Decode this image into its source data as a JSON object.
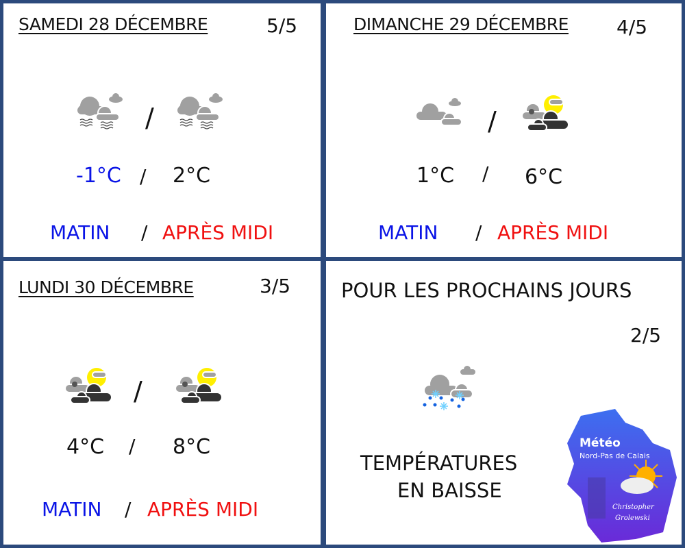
{
  "days": [
    {
      "title": "SAMEDI 28 DÉCEMBRE",
      "score": "5/5",
      "icon_morning": "fog-cloud-icon",
      "icon_afternoon": "fog-cloud-icon",
      "temp_morning": "-1°C",
      "temp_afternoon": "2°C",
      "label_morning": "MATIN",
      "label_afternoon": "APRÈS MIDI",
      "sep": "/"
    },
    {
      "title": "DIMANCHE 29 DÉCEMBRE",
      "score": "4/5",
      "icon_morning": "cloudy-icon",
      "icon_afternoon": "sun-dark-clouds-icon",
      "temp_morning": "1°C",
      "temp_afternoon": "6°C",
      "label_morning": "MATIN",
      "label_afternoon": "APRÈS MIDI",
      "sep": "/"
    },
    {
      "title": "LUNDI 30 DÉCEMBRE",
      "score": "3/5",
      "icon_morning": "sun-dark-clouds-icon",
      "icon_afternoon": "sun-dark-clouds-icon",
      "temp_morning": "4°C",
      "temp_afternoon": "8°C",
      "label_morning": "MATIN",
      "label_afternoon": "APRÈS MIDI",
      "sep": "/"
    }
  ],
  "outlook": {
    "title": "POUR LES PROCHAINS JOURS",
    "score": "2/5",
    "icon": "snow-rain-icon",
    "line1": "TEMPÉRATURES",
    "line2": "EN BAISSE"
  },
  "logo": {
    "title": "Météo",
    "subtitle": "Nord-Pas de Calais",
    "author1": "Christopher",
    "author2": "Grolewski"
  },
  "colors": {
    "border": "#2c4a7c",
    "morning": "#0a14e6",
    "afternoon": "#f01010",
    "cold_temp": "#0a14e6"
  }
}
